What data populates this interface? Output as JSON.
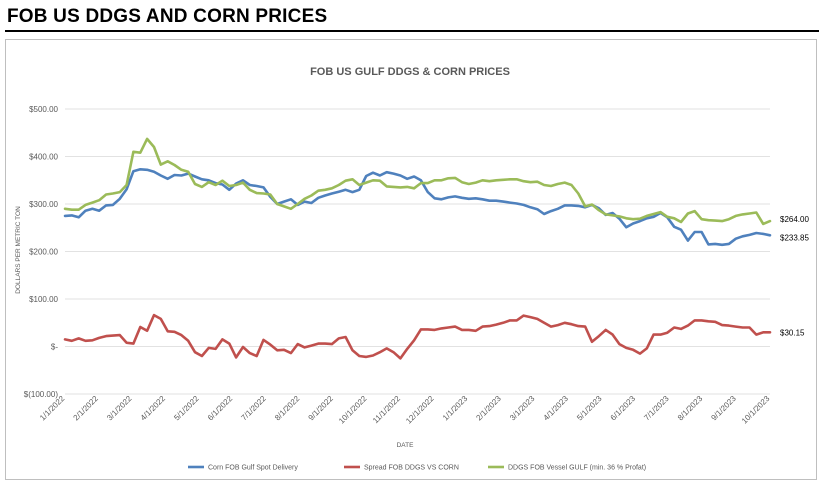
{
  "page": {
    "title": "FOB US DDGS AND CORN PRICES"
  },
  "chart_data": {
    "type": "line",
    "title": "FOB US GULF DDGS & CORN PRICES",
    "xlabel": "DATE",
    "ylabel": "DOLLARS PER METRIC TON",
    "ylim": [
      -100,
      500
    ],
    "yticks": [
      {
        "value": 500,
        "label": "$500.00"
      },
      {
        "value": 400,
        "label": "$400.00"
      },
      {
        "value": 300,
        "label": "$300.00"
      },
      {
        "value": 200,
        "label": "$200.00"
      },
      {
        "value": 100,
        "label": "$100.00"
      },
      {
        "value": 0,
        "label": "$-"
      },
      {
        "value": -100,
        "label": "$(100.00)"
      }
    ],
    "xticks": [
      "1/1/2022",
      "2/1/2022",
      "3/1/2022",
      "4/1/2022",
      "5/1/2022",
      "6/1/2022",
      "7/1/2022",
      "8/1/2022",
      "9/1/2022",
      "10/1/2022",
      "11/1/2022",
      "12/1/2022",
      "1/1/2023",
      "2/1/2023",
      "3/1/2023",
      "4/1/2023",
      "5/1/2023",
      "6/1/2023",
      "7/1/2023",
      "8/1/2023",
      "9/1/2023",
      "10/1/2023"
    ],
    "grid": "horizontal",
    "legend_position": "bottom",
    "series": [
      {
        "name": "Corn FOB Gulf Spot Delivery",
        "color": "#4f81bd",
        "end_label": "$233.85",
        "values": [
          275,
          276,
          272,
          286,
          290,
          286,
          297,
          298,
          311,
          331,
          369,
          373,
          372,
          368,
          360,
          353,
          361,
          360,
          364,
          358,
          352,
          350,
          344,
          341,
          330,
          343,
          350,
          340,
          338,
          335,
          315,
          300,
          305,
          310,
          298,
          305,
          302,
          313,
          318,
          322,
          326,
          330,
          325,
          330,
          359,
          366,
          360,
          367,
          364,
          360,
          353,
          358,
          350,
          325,
          312,
          310,
          314,
          316,
          313,
          311,
          312,
          310,
          307,
          307,
          305,
          303,
          301,
          298,
          293,
          289,
          279,
          285,
          290,
          297,
          297,
          296,
          293,
          298,
          291,
          277,
          281,
          269,
          251,
          259,
          264,
          270,
          273,
          281,
          272,
          252,
          246,
          223,
          241,
          241,
          215,
          216,
          214,
          216,
          227,
          232,
          235,
          239,
          237,
          234
        ]
      },
      {
        "name": "Spread FOB DDGS VS CORN",
        "color": "#c0504d",
        "end_label": "$30.15",
        "values": [
          15,
          12,
          17,
          12,
          13,
          18,
          22,
          23,
          24,
          8,
          6,
          41,
          33,
          66,
          58,
          32,
          31,
          24,
          12,
          -12,
          -20,
          -3,
          -5,
          15,
          6,
          -23,
          -1,
          -14,
          -20,
          14,
          4,
          -8,
          -7,
          -14,
          5,
          -2,
          2,
          6,
          6,
          5,
          17,
          20,
          -8,
          -20,
          -22,
          -19,
          -12,
          -4,
          -12,
          -25,
          -5,
          13,
          36,
          36,
          35,
          38,
          40,
          42,
          35,
          35,
          33,
          42,
          43,
          46,
          50,
          55,
          55,
          65,
          62,
          58,
          50,
          42,
          45,
          50,
          47,
          43,
          42,
          10,
          22,
          35,
          25,
          5,
          -3,
          -7,
          -15,
          -4,
          25,
          25,
          29,
          40,
          37,
          44,
          55,
          55,
          53,
          52,
          45,
          44,
          42,
          40,
          40,
          25,
          30,
          30
        ]
      },
      {
        "name": "DDGS FOB Vessel GULF (min. 36 % Profat)",
        "color": "#9bbb59",
        "end_label": "$264.00",
        "values": [
          290,
          288,
          288,
          298,
          303,
          308,
          320,
          322,
          325,
          340,
          410,
          408,
          437,
          420,
          383,
          390,
          382,
          372,
          368,
          342,
          336,
          346,
          340,
          349,
          338,
          340,
          345,
          330,
          323,
          322,
          320,
          300,
          295,
          290,
          300,
          311,
          318,
          328,
          330,
          333,
          340,
          349,
          352,
          340,
          345,
          350,
          349,
          337,
          336,
          335,
          336,
          333,
          344,
          344,
          350,
          350,
          354,
          355,
          346,
          342,
          345,
          350,
          348,
          350,
          351,
          352,
          352,
          348,
          346,
          347,
          340,
          338,
          342,
          345,
          340,
          322,
          295,
          299,
          287,
          278,
          276,
          274,
          270,
          268,
          269,
          275,
          279,
          283,
          273,
          270,
          262,
          280,
          285,
          268,
          266,
          265,
          264,
          268,
          275,
          278,
          280,
          282,
          258,
          264
        ]
      }
    ]
  }
}
